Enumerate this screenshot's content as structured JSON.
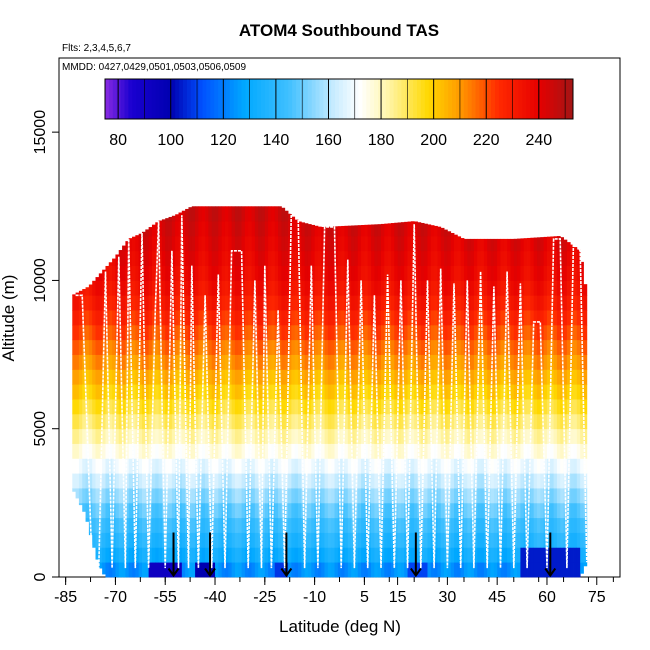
{
  "chart_data": {
    "type": "heatmap",
    "title": "ATOM4 Southbound TAS",
    "flights_note": "Flts: 2,3,4,5,6,7",
    "dates_note": "MMDD: 0427,0429,0501,0503,0506,0509",
    "xlabel": "Latitude (deg N)",
    "ylabel": "Altitude (m)",
    "xlim": [
      -87,
      82
    ],
    "ylim": [
      0,
      17500
    ],
    "x_ticks": [
      -85,
      -70,
      -55,
      -40,
      -25,
      -10,
      5,
      15,
      30,
      45,
      60,
      75
    ],
    "y_ticks": [
      0,
      5000,
      10000,
      15000
    ],
    "colorbar": {
      "min": 75,
      "max": 253,
      "ticks": [
        80,
        100,
        120,
        140,
        160,
        180,
        200,
        220,
        240
      ],
      "stops": [
        {
          "v": 75,
          "c": "#8a2be2"
        },
        {
          "v": 85,
          "c": "#1a00d0"
        },
        {
          "v": 100,
          "c": "#0000b0"
        },
        {
          "v": 112,
          "c": "#0050ff"
        },
        {
          "v": 128,
          "c": "#00a8ff"
        },
        {
          "v": 145,
          "c": "#40c0ff"
        },
        {
          "v": 162,
          "c": "#c8ecff"
        },
        {
          "v": 172,
          "c": "#ffffff"
        },
        {
          "v": 182,
          "c": "#fff6b0"
        },
        {
          "v": 198,
          "c": "#ffd800"
        },
        {
          "v": 210,
          "c": "#ff9a00"
        },
        {
          "v": 225,
          "c": "#ff2800"
        },
        {
          "v": 240,
          "c": "#e60000"
        },
        {
          "v": 253,
          "c": "#a31515"
        }
      ]
    },
    "profile": {
      "lat_min": -83,
      "lat_max": 72,
      "lat_step": 1,
      "alt_step": 500,
      "top_altitude": [
        [
          -83,
          9500
        ],
        [
          -78,
          9800
        ],
        [
          -74,
          10300
        ],
        [
          -70,
          10800
        ],
        [
          -66,
          11400
        ],
        [
          -62,
          11600
        ],
        [
          -57,
          12000
        ],
        [
          -52,
          12200
        ],
        [
          -47,
          12500
        ],
        [
          -20,
          12500
        ],
        [
          -15,
          12000
        ],
        [
          -8,
          11800
        ],
        [
          10,
          11900
        ],
        [
          20,
          12000
        ],
        [
          28,
          11800
        ],
        [
          35,
          11400
        ],
        [
          50,
          11400
        ],
        [
          64,
          11500
        ],
        [
          70,
          11000
        ],
        [
          72,
          9500
        ]
      ],
      "bottom_altitude": [
        [
          -83,
          3000
        ],
        [
          -79,
          2100
        ],
        [
          -77,
          1200
        ],
        [
          -75,
          400
        ],
        [
          -73,
          0
        ],
        [
          70,
          0
        ],
        [
          72,
          500
        ]
      ],
      "tas_by_altitude": [
        [
          0,
          120
        ],
        [
          1000,
          135
        ],
        [
          2000,
          145
        ],
        [
          3000,
          158
        ],
        [
          4000,
          172
        ],
        [
          5000,
          185
        ],
        [
          6000,
          197
        ],
        [
          7000,
          208
        ],
        [
          8000,
          218
        ],
        [
          9000,
          228
        ],
        [
          10000,
          236
        ],
        [
          11000,
          240
        ],
        [
          12500,
          245
        ]
      ],
      "low_speed_bands": [
        {
          "lat_min": -60,
          "lat_max": -50,
          "alt_max": 600,
          "tas": 92
        },
        {
          "lat_min": -46,
          "lat_max": -40,
          "alt_max": 600,
          "tas": 100
        },
        {
          "lat_min": -22,
          "lat_max": -18,
          "alt_max": 600,
          "tas": 108
        },
        {
          "lat_min": 18,
          "lat_max": 24,
          "alt_max": 600,
          "tas": 110
        },
        {
          "lat_min": 52,
          "lat_max": 70,
          "alt_max": 900,
          "tas": 104
        }
      ]
    },
    "flight_track": {
      "color": "#ffffff",
      "latitudes": [
        [
          -82,
          9500
        ],
        [
          -80,
          9500
        ],
        [
          -77,
          300
        ],
        [
          -75,
          300
        ],
        [
          -73,
          10300
        ],
        [
          -71,
          300
        ],
        [
          -69,
          10800
        ],
        [
          -67,
          300
        ],
        [
          -66,
          11400
        ],
        [
          -64,
          300
        ],
        [
          -62,
          11600
        ],
        [
          -60,
          300
        ],
        [
          -58,
          9000
        ],
        [
          -57,
          12000
        ],
        [
          -55,
          300
        ],
        [
          -53,
          11000
        ],
        [
          -51,
          300
        ],
        [
          -50,
          12200
        ],
        [
          -48,
          300
        ],
        [
          -47,
          10500
        ],
        [
          -45,
          300
        ],
        [
          -43,
          9500
        ],
        [
          -41,
          300
        ],
        [
          -39,
          10200
        ],
        [
          -37,
          300
        ],
        [
          -35,
          11000
        ],
        [
          -32,
          11000
        ],
        [
          -30,
          300
        ],
        [
          -28,
          10000
        ],
        [
          -26,
          300
        ],
        [
          -25,
          10500
        ],
        [
          -23,
          300
        ],
        [
          -21,
          9000
        ],
        [
          -19,
          300
        ],
        [
          -17,
          12500
        ],
        [
          -15,
          12500
        ],
        [
          -13,
          300
        ],
        [
          -11,
          10500
        ],
        [
          -9,
          300
        ],
        [
          -7,
          11800
        ],
        [
          -4,
          11800
        ],
        [
          -2,
          300
        ],
        [
          0,
          10700
        ],
        [
          2,
          300
        ],
        [
          4,
          10000
        ],
        [
          6,
          300
        ],
        [
          8,
          9500
        ],
        [
          10,
          300
        ],
        [
          12,
          10200
        ],
        [
          14,
          300
        ],
        [
          16,
          10000
        ],
        [
          18,
          300
        ],
        [
          20,
          11900
        ],
        [
          22,
          300
        ],
        [
          24,
          10000
        ],
        [
          26,
          300
        ],
        [
          28,
          10400
        ],
        [
          30,
          300
        ],
        [
          32,
          9900
        ],
        [
          34,
          300
        ],
        [
          36,
          10000
        ],
        [
          38,
          300
        ],
        [
          40,
          10300
        ],
        [
          42,
          300
        ],
        [
          44,
          9800
        ],
        [
          46,
          300
        ],
        [
          48,
          10300
        ],
        [
          50,
          300
        ],
        [
          52,
          9900
        ],
        [
          54,
          300
        ],
        [
          56,
          8600
        ],
        [
          58,
          8600
        ],
        [
          60,
          300
        ],
        [
          62,
          11400
        ],
        [
          64,
          11400
        ],
        [
          66,
          300
        ],
        [
          68,
          11400
        ],
        [
          70,
          11000
        ],
        [
          72,
          500
        ]
      ]
    },
    "sounding_arrows": [
      -52.5,
      -41.5,
      -18.5,
      20.5,
      61
    ]
  }
}
